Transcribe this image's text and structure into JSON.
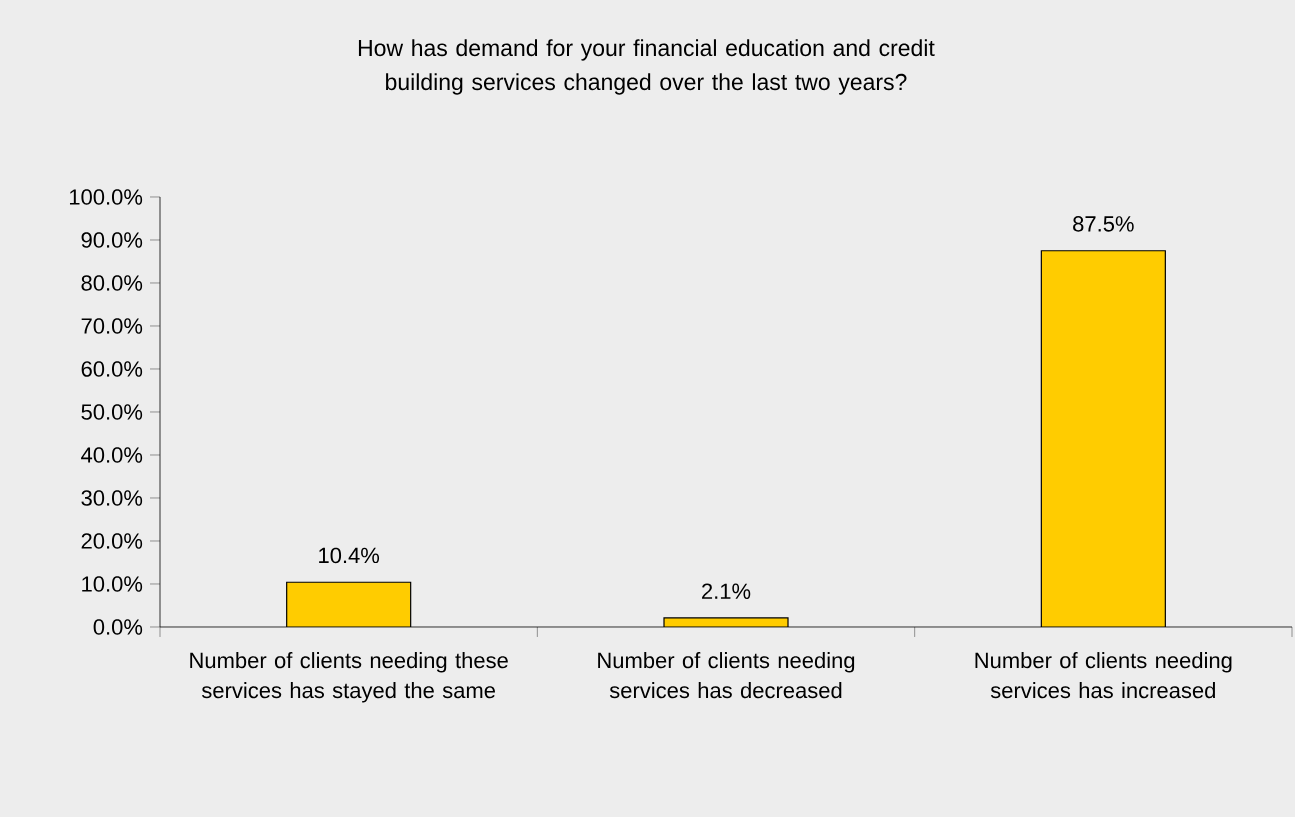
{
  "chart_data": {
    "type": "bar",
    "title": "How has demand for your financial education and credit building services changed over the last two years?",
    "categories": [
      "Number of clients needing these services has stayed the same",
      "Number of clients needing services has decreased",
      "Number of clients needing services has increased"
    ],
    "values": [
      10.4,
      2.1,
      87.5
    ],
    "value_labels": [
      "10.4%",
      "2.1%",
      "87.5%"
    ],
    "color": "#ffcc00",
    "ylim": [
      0,
      100
    ],
    "yticks": [
      {
        "value": 0,
        "label": "0.0%"
      },
      {
        "value": 10,
        "label": "10.0%"
      },
      {
        "value": 20,
        "label": "20.0%"
      },
      {
        "value": 30,
        "label": "30.0%"
      },
      {
        "value": 40,
        "label": "40.0%"
      },
      {
        "value": 50,
        "label": "50.0%"
      },
      {
        "value": 60,
        "label": "60.0%"
      },
      {
        "value": 70,
        "label": "70.0%"
      },
      {
        "value": 80,
        "label": "80.0%"
      },
      {
        "value": 90,
        "label": "90.0%"
      },
      {
        "value": 100,
        "label": "100.0%"
      }
    ],
    "grid": false
  }
}
